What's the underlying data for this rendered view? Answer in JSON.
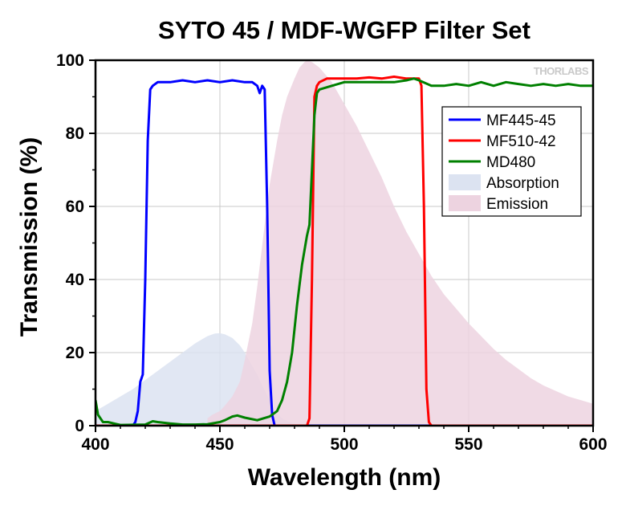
{
  "chart_data": {
    "type": "line",
    "title": "SYTO 45 / MDF-WGFP Filter Set",
    "xlabel": "Wavelength (nm)",
    "ylabel": "Transmission (%)",
    "xlim": [
      400,
      600
    ],
    "ylim": [
      0,
      100
    ],
    "x_ticks": [
      400,
      450,
      500,
      550,
      600
    ],
    "y_ticks": [
      0,
      20,
      40,
      60,
      80,
      100
    ],
    "grid": true,
    "legend_position": "top-right",
    "watermark": "THORLABS",
    "series": [
      {
        "name": "MF445-45",
        "kind": "line",
        "color": "#0000ff",
        "points": [
          [
            400,
            0
          ],
          [
            415,
            0
          ],
          [
            416,
            1
          ],
          [
            417,
            4
          ],
          [
            418,
            12
          ],
          [
            419,
            14
          ],
          [
            420,
            40
          ],
          [
            421,
            78
          ],
          [
            422,
            92
          ],
          [
            423,
            93
          ],
          [
            425,
            94
          ],
          [
            430,
            94
          ],
          [
            435,
            94.5
          ],
          [
            440,
            94
          ],
          [
            445,
            94.5
          ],
          [
            450,
            94
          ],
          [
            455,
            94.5
          ],
          [
            460,
            94
          ],
          [
            463,
            94
          ],
          [
            465,
            93
          ],
          [
            466,
            91
          ],
          [
            467,
            93
          ],
          [
            468,
            92
          ],
          [
            469,
            60
          ],
          [
            470,
            15
          ],
          [
            471,
            3
          ],
          [
            472,
            0
          ],
          [
            600,
            0
          ]
        ]
      },
      {
        "name": "MF510-42",
        "kind": "line",
        "color": "#ff0000",
        "points": [
          [
            400,
            0
          ],
          [
            485,
            0
          ],
          [
            486,
            2
          ],
          [
            487,
            40
          ],
          [
            488,
            90
          ],
          [
            489,
            93
          ],
          [
            490,
            94
          ],
          [
            493,
            95
          ],
          [
            497,
            95
          ],
          [
            500,
            95
          ],
          [
            505,
            95
          ],
          [
            510,
            95.3
          ],
          [
            515,
            95
          ],
          [
            520,
            95.5
          ],
          [
            525,
            95
          ],
          [
            530,
            95
          ],
          [
            531,
            93
          ],
          [
            532,
            60
          ],
          [
            533,
            10
          ],
          [
            534,
            1
          ],
          [
            535,
            0
          ],
          [
            600,
            0
          ]
        ]
      },
      {
        "name": "MD480",
        "kind": "line",
        "color": "#008000",
        "points": [
          [
            400,
            7
          ],
          [
            401,
            3
          ],
          [
            403,
            1
          ],
          [
            405,
            1
          ],
          [
            408,
            0.5
          ],
          [
            410,
            0.2
          ],
          [
            420,
            0.3
          ],
          [
            423,
            1.2
          ],
          [
            425,
            1
          ],
          [
            430,
            0.6
          ],
          [
            435,
            0.3
          ],
          [
            440,
            0.3
          ],
          [
            445,
            0.4
          ],
          [
            450,
            1
          ],
          [
            452,
            1.5
          ],
          [
            455,
            2.5
          ],
          [
            457,
            2.8
          ],
          [
            460,
            2.2
          ],
          [
            465,
            1.5
          ],
          [
            470,
            2.5
          ],
          [
            473,
            4
          ],
          [
            475,
            7
          ],
          [
            477,
            12
          ],
          [
            479,
            20
          ],
          [
            481,
            33
          ],
          [
            483,
            44
          ],
          [
            485,
            52
          ],
          [
            486,
            55
          ],
          [
            487,
            70
          ],
          [
            488,
            85
          ],
          [
            489,
            91
          ],
          [
            490,
            92
          ],
          [
            495,
            93
          ],
          [
            500,
            94
          ],
          [
            510,
            94
          ],
          [
            520,
            94
          ],
          [
            525,
            94.5
          ],
          [
            528,
            95
          ],
          [
            530,
            94.5
          ],
          [
            535,
            93
          ],
          [
            540,
            93
          ],
          [
            545,
            93.5
          ],
          [
            550,
            93
          ],
          [
            555,
            94
          ],
          [
            560,
            93
          ],
          [
            565,
            94
          ],
          [
            570,
            93.5
          ],
          [
            575,
            93
          ],
          [
            580,
            93.5
          ],
          [
            585,
            93
          ],
          [
            590,
            93.5
          ],
          [
            595,
            93
          ],
          [
            600,
            93
          ]
        ]
      },
      {
        "name": "Absorption",
        "kind": "area",
        "color": "#dce3f1",
        "points": [
          [
            400,
            4
          ],
          [
            405,
            6
          ],
          [
            410,
            8
          ],
          [
            415,
            10
          ],
          [
            420,
            12.5
          ],
          [
            425,
            15
          ],
          [
            430,
            17.5
          ],
          [
            435,
            20
          ],
          [
            440,
            22.5
          ],
          [
            445,
            24.5
          ],
          [
            448,
            25.2
          ],
          [
            450,
            25.3
          ],
          [
            452,
            25
          ],
          [
            455,
            24
          ],
          [
            458,
            22
          ],
          [
            460,
            20
          ],
          [
            462,
            17.5
          ],
          [
            465,
            14
          ],
          [
            467,
            11
          ],
          [
            470,
            7
          ],
          [
            472,
            4
          ],
          [
            475,
            2
          ],
          [
            478,
            1
          ],
          [
            480,
            0.5
          ],
          [
            483,
            0
          ]
        ]
      },
      {
        "name": "Emission",
        "kind": "area",
        "color": "#edd3e0",
        "points": [
          [
            445,
            2
          ],
          [
            447,
            3
          ],
          [
            450,
            4
          ],
          [
            452,
            5.5
          ],
          [
            455,
            8
          ],
          [
            458,
            12
          ],
          [
            460,
            18
          ],
          [
            463,
            28
          ],
          [
            465,
            38
          ],
          [
            468,
            55
          ],
          [
            470,
            66
          ],
          [
            473,
            78
          ],
          [
            475,
            85
          ],
          [
            477,
            90
          ],
          [
            480,
            95
          ],
          [
            482,
            98
          ],
          [
            484,
            99.5
          ],
          [
            485,
            100
          ],
          [
            487,
            99.5
          ],
          [
            490,
            98
          ],
          [
            495,
            94
          ],
          [
            500,
            88
          ],
          [
            505,
            82
          ],
          [
            510,
            75
          ],
          [
            515,
            68
          ],
          [
            520,
            60
          ],
          [
            525,
            53
          ],
          [
            530,
            47
          ],
          [
            535,
            41
          ],
          [
            540,
            36
          ],
          [
            545,
            32
          ],
          [
            550,
            28
          ],
          [
            555,
            24.5
          ],
          [
            560,
            21
          ],
          [
            565,
            18
          ],
          [
            570,
            15.5
          ],
          [
            575,
            13
          ],
          [
            580,
            11
          ],
          [
            585,
            9.5
          ],
          [
            590,
            8
          ],
          [
            595,
            7
          ],
          [
            600,
            6
          ]
        ]
      }
    ]
  }
}
